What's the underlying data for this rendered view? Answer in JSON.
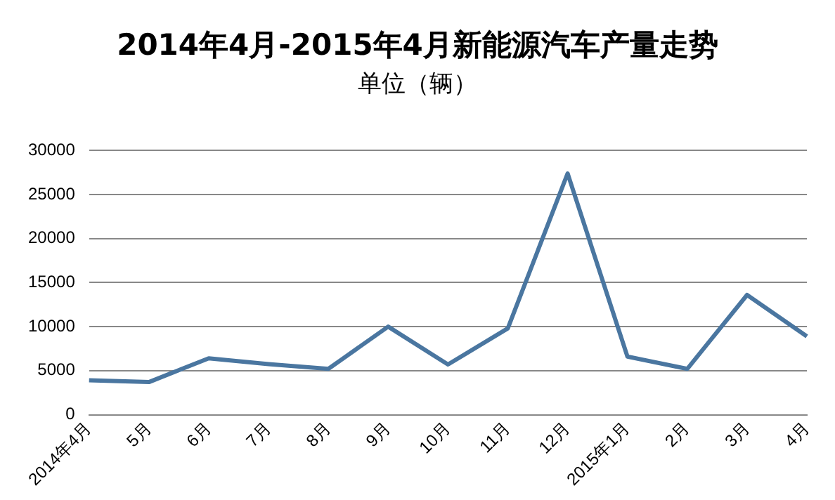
{
  "chart_data": {
    "type": "line",
    "title": "2014年4月-2015年4月新能源汽车产量走势",
    "subtitle": "单位（辆）",
    "categories": [
      "2014年4月",
      "5月",
      "6月",
      "7月",
      "8月",
      "9月",
      "10月",
      "11月",
      "12月",
      "2015年1月",
      "2月",
      "3月",
      "4月"
    ],
    "series": [
      {
        "color": "#4a76a0",
        "values": [
          3900,
          3700,
          6400,
          5750,
          5200,
          10000,
          5700,
          9800,
          27400,
          6600,
          5200,
          13600,
          8900
        ]
      }
    ],
    "ylim": [
      0,
      30000
    ],
    "yticks": [
      0,
      5000,
      10000,
      15000,
      20000,
      25000,
      30000
    ],
    "grid": "y",
    "legend": false,
    "marker": "none"
  }
}
